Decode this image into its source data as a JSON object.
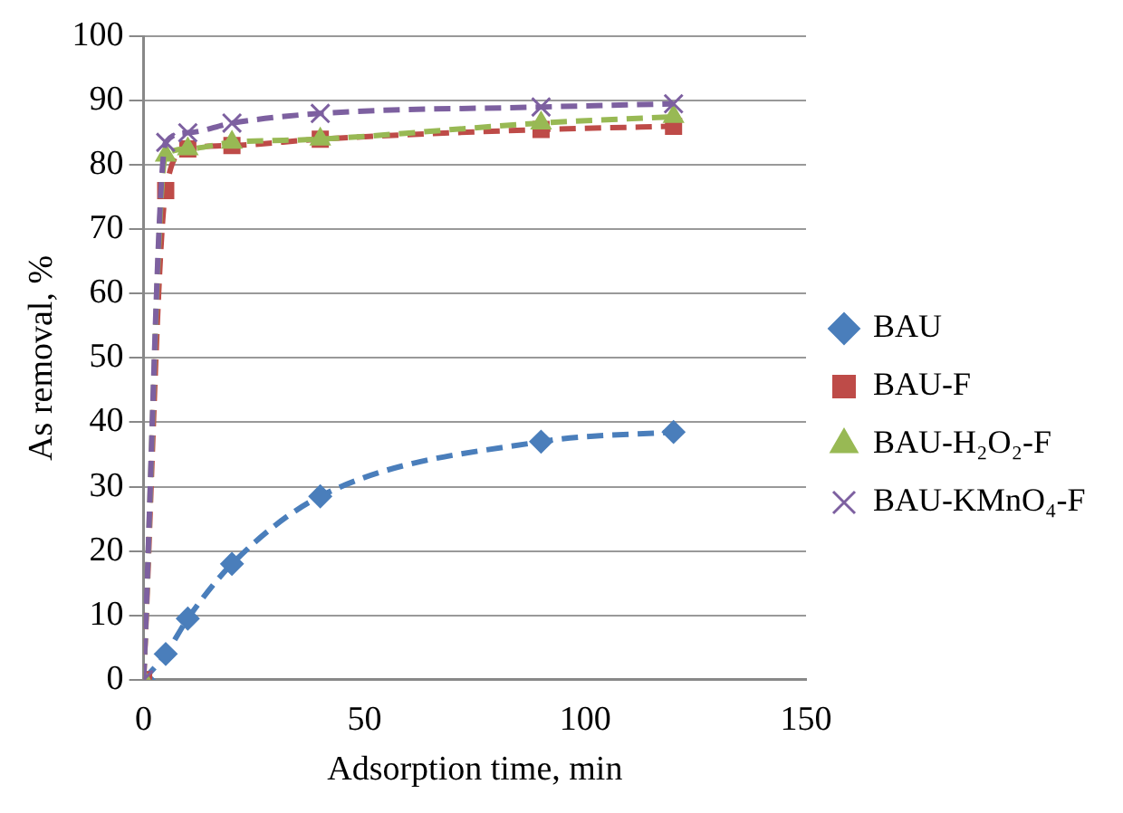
{
  "chart_data": {
    "type": "line",
    "xlabel": "Adsorption time, min",
    "ylabel": "As removal, %",
    "x": [
      0,
      5,
      10,
      20,
      40,
      90,
      120
    ],
    "series": [
      {
        "name": "BAU",
        "color": "#4a7ebb",
        "marker": "diamond",
        "values": [
          0,
          4,
          9.5,
          18,
          28.5,
          37,
          38.5
        ]
      },
      {
        "name": "BAU-F",
        "color": "#be4b48",
        "marker": "square",
        "values": [
          0,
          76,
          82.5,
          83,
          84,
          85.5,
          86
        ]
      },
      {
        "name": "BAU-H₂O₂-F",
        "color": "#98b954",
        "marker": "triangle",
        "values": [
          0,
          81.5,
          82.5,
          83.5,
          84,
          86.5,
          87.5
        ]
      },
      {
        "name": "BAU-KMnO₄-F",
        "color": "#7d60a0",
        "marker": "cross",
        "values": [
          0,
          83.5,
          85,
          86.5,
          88,
          89,
          89.5
        ]
      }
    ],
    "xlim": [
      0,
      150
    ],
    "xticks": [
      0,
      50,
      100,
      150
    ],
    "ylim": [
      0,
      100
    ],
    "yticks": [
      0,
      10,
      20,
      30,
      40,
      50,
      60,
      70,
      80,
      90,
      100
    ],
    "grid": "y",
    "legend": "right",
    "line_style": "dashed"
  }
}
